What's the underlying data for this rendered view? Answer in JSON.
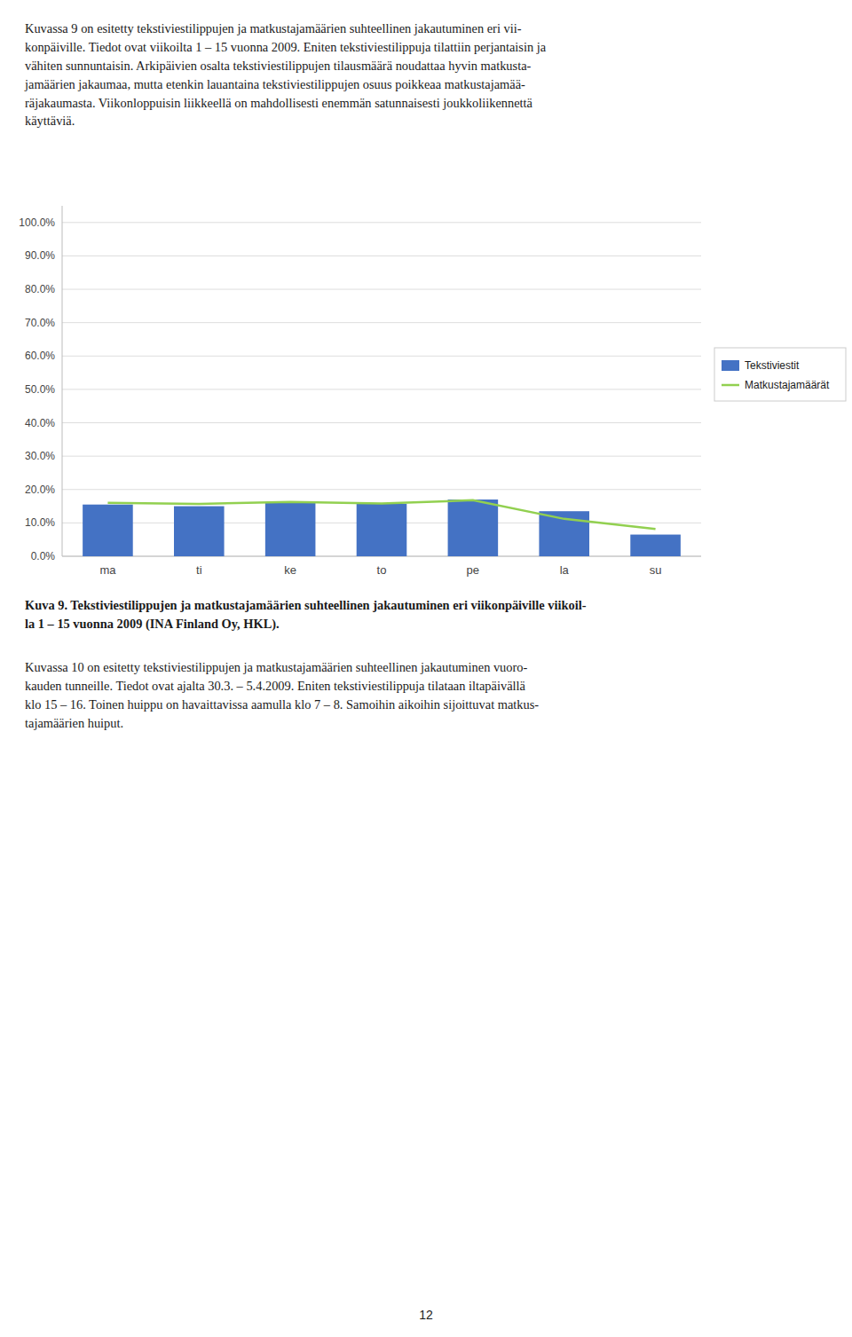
{
  "body_text_top": "Kuvassa 9 on esitetty tekstiviestilippujen ja matkustajamäärien suhteellinen jakautuminen eri vii-\nkonpäiville. Tiedot ovat viikoilta 1 – 15 vuonna 2009. Eniten tekstiviestilippuja tilattiin perjantaisin ja\nvähiten sunnuntaisin. Arkipäivien osalta tekstiviestilippujen tilausmäärä noudattaa hyvin matkusta-\njamäärien jakaumaa, mutta etenkin lauantaina tekstiviestilippujen osuus poikkeaa matkustajamää-\nräjakaumasta. Viikonloppuisin liikkeellä on mahdollisesti enemmän satunnaisesti joukkoliikennettä\nkäyttäviä.",
  "caption_bold": "Kuva 9.",
  "caption": " Tekstiviestilippujen ja matkustajamäärien suhteellinen jakautuminen eri viikonpäiville viikoil-\nla 1 – 15 vuonna 2009 (INA Finland Oy, HKL).",
  "body_text_bottom": "Kuvassa 10 on esitetty tekstiviestilippujen ja matkustajamäärien suhteellinen jakautuminen vuoro-\nkauden tunneille. Tiedot ovat ajalta 30.3. – 5.4.2009. Eniten tekstiviestilippuja tilataan iltapäivällä\nklo 15 – 16. Toinen huippu on havaittavissa aamulla klo 7 – 8. Samoihin aikoihin sijoittuvat matkus-\ntajamäärien huiput.",
  "page_number": "12",
  "chart_data": {
    "type": "bar",
    "categories": [
      "ma",
      "ti",
      "ke",
      "to",
      "pe",
      "la",
      "su"
    ],
    "series": [
      {
        "name": "Tekstiviestit",
        "type": "bar",
        "color": "#4472C4",
        "values": [
          0.155,
          0.15,
          0.163,
          0.157,
          0.17,
          0.135,
          0.065
        ]
      },
      {
        "name": "Matkustajamäärät",
        "type": "line",
        "color": "#92D050",
        "values": [
          0.16,
          0.157,
          0.163,
          0.158,
          0.168,
          0.112,
          0.082
        ]
      }
    ],
    "ylim": [
      0,
      1.05
    ],
    "yticks": [
      {
        "value": 0.0,
        "label": "0.0%"
      },
      {
        "value": 0.1,
        "label": "10.0%"
      },
      {
        "value": 0.2,
        "label": "20.0%"
      },
      {
        "value": 0.3,
        "label": "30.0%"
      },
      {
        "value": 0.4,
        "label": "40.0%"
      },
      {
        "value": 0.5,
        "label": "50.0%"
      },
      {
        "value": 0.6,
        "label": "60.0%"
      },
      {
        "value": 0.7,
        "label": "70.0%"
      },
      {
        "value": 0.8,
        "label": "80.0%"
      },
      {
        "value": 0.9,
        "label": "90.0%"
      },
      {
        "value": 1.0,
        "label": "100.0%"
      }
    ],
    "grid": true,
    "legend": "right"
  }
}
